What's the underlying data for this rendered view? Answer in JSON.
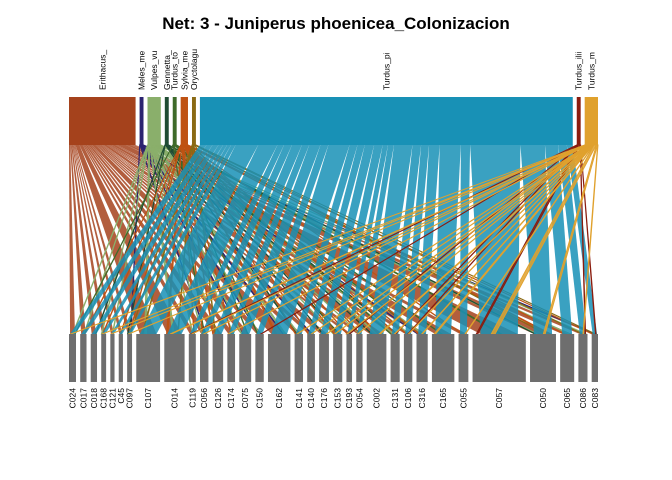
{
  "title": "Net: 3 - Juniperus phoenicea_Colonizacion",
  "chart_data": {
    "type": "bipartite",
    "top_nodes": [
      {
        "label": "Erithacus_",
        "color": "#a5421c",
        "weight": 5.0
      },
      {
        "label": "Meles_me",
        "color": "#2b2370",
        "weight": 0.15
      },
      {
        "label": "Vulpes_vu",
        "color": "#8aaf6b",
        "weight": 1.0
      },
      {
        "label": "Gennetta_",
        "color": "#1f4c33",
        "weight": 0.15
      },
      {
        "label": "Turdus_to",
        "color": "#3f6b2a",
        "weight": 0.15
      },
      {
        "label": "Sylvia_me",
        "color": "#bf5213",
        "weight": 0.55
      },
      {
        "label": "Oryctolagu",
        "color": "#8a6a14",
        "weight": 0.15
      },
      {
        "label": "Turdus_pi",
        "color": "#1891b6",
        "weight": 28.0
      },
      {
        "label": "Turdus_ilii",
        "color": "#8a1c0e",
        "weight": 0.15
      },
      {
        "label": "Turdus_m",
        "color": "#e0a12d",
        "weight": 1.0
      }
    ],
    "bottom_nodes": [
      {
        "label": "C024",
        "weight": 1.0
      },
      {
        "label": "C017",
        "weight": 0.9
      },
      {
        "label": "C018",
        "weight": 0.9
      },
      {
        "label": "C168",
        "weight": 0.7
      },
      {
        "label": "C121",
        "weight": 0.6
      },
      {
        "label": "C45",
        "weight": 0.6
      },
      {
        "label": "C097",
        "weight": 0.7
      },
      {
        "label": "C107",
        "weight": 3.4
      },
      {
        "label": "C014",
        "weight": 2.9
      },
      {
        "label": "C119",
        "weight": 1.0
      },
      {
        "label": "C056",
        "weight": 1.2
      },
      {
        "label": "C126",
        "weight": 1.5
      },
      {
        "label": "C174",
        "weight": 1.1
      },
      {
        "label": "C075",
        "weight": 1.7
      },
      {
        "label": "C150",
        "weight": 1.2
      },
      {
        "label": "C162",
        "weight": 3.2
      },
      {
        "label": "C141",
        "weight": 1.2
      },
      {
        "label": "C140",
        "weight": 1.1
      },
      {
        "label": "C176",
        "weight": 1.4
      },
      {
        "label": "C153",
        "weight": 1.3
      },
      {
        "label": "C193",
        "weight": 0.8
      },
      {
        "label": "C054",
        "weight": 0.9
      },
      {
        "label": "C002",
        "weight": 2.8
      },
      {
        "label": "C131",
        "weight": 1.3
      },
      {
        "label": "C106",
        "weight": 1.2
      },
      {
        "label": "C316",
        "weight": 1.6
      },
      {
        "label": "C165",
        "weight": 3.2
      },
      {
        "label": "C055",
        "weight": 1.4
      },
      {
        "label": "C057",
        "weight": 7.6
      },
      {
        "label": "C050",
        "weight": 3.7
      },
      {
        "label": "C065",
        "weight": 2.0
      },
      {
        "label": "C086",
        "weight": 1.3
      },
      {
        "label": "C083",
        "weight": 0.9
      }
    ],
    "bottom_color": "#6e6e6e",
    "link_opacity": 0.85
  }
}
